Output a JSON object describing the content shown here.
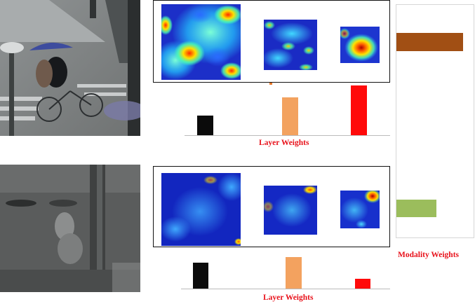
{
  "rows": [
    {
      "caption": "Layer Weights",
      "bars": [
        {
          "value": 0.27,
          "color": "#0b0b0b"
        },
        {
          "value": 0.52,
          "color": "#f3a25f"
        },
        {
          "value": 0.68,
          "color": "#ff0a0a"
        }
      ]
    },
    {
      "caption": "Layer Weights",
      "bars": [
        {
          "value": 0.45,
          "color": "#0b0b0b"
        },
        {
          "value": 0.55,
          "color": "#f3a25f"
        },
        {
          "value": 0.17,
          "color": "#ff0a0a"
        }
      ]
    }
  ],
  "modality": {
    "caption": "Modality Weights",
    "bars": [
      {
        "value": 0.85,
        "color": "#a14f14"
      },
      {
        "value": 0.51,
        "color": "#9bbd5c"
      }
    ]
  }
}
